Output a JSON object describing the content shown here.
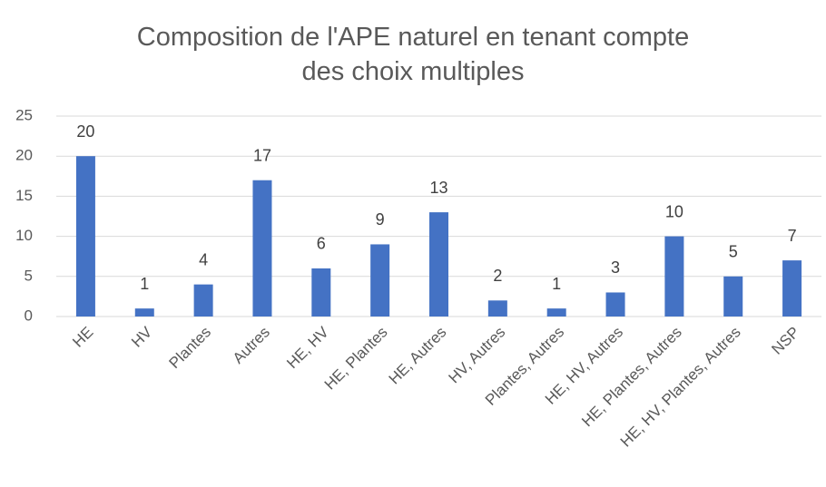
{
  "chart_data": {
    "type": "bar",
    "title": "Composition de l'APE naturel en tenant compte des choix multiples",
    "categories": [
      "HE",
      "HV",
      "Plantes",
      "Autres",
      "HE, HV",
      "HE, Plantes",
      "HE, Autres",
      "HV, Autres",
      "Plantes, Autres",
      "HE, HV, Autres",
      "HE, Plantes, Autres",
      "HE, HV, Plantes, Autres",
      "NSP"
    ],
    "values": [
      20,
      1,
      4,
      17,
      6,
      9,
      13,
      2,
      1,
      3,
      10,
      5,
      7
    ],
    "color": "#4472c4",
    "ylim": [
      0,
      25
    ],
    "yticks": [
      0,
      5,
      10,
      15,
      20,
      25
    ],
    "grid": true
  }
}
